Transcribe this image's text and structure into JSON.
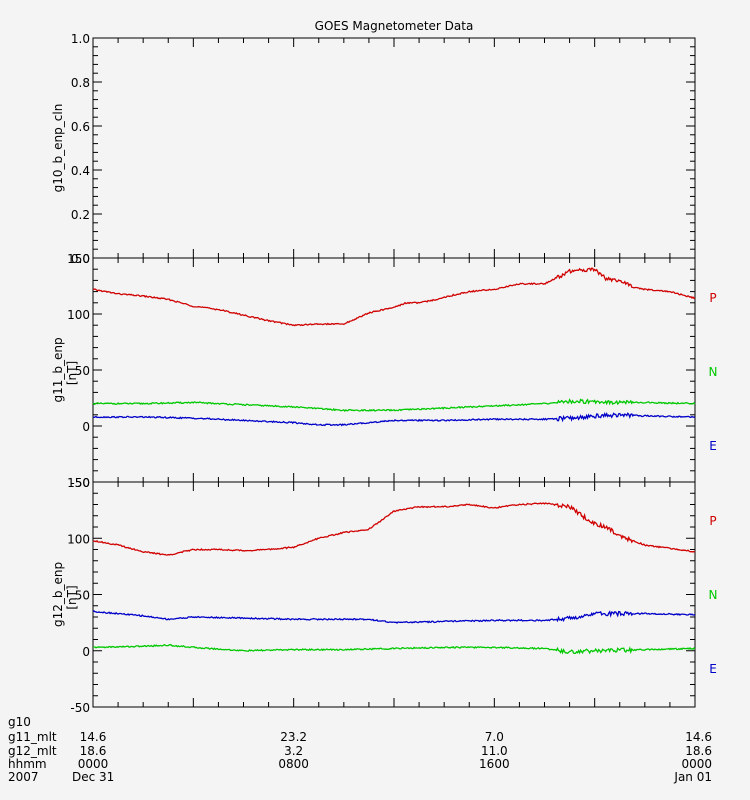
{
  "chart_data": {
    "type": "line",
    "title": "GOES Magnetometer Data",
    "panels": [
      {
        "ylabel": "g10_b_enp_cln",
        "yunits": "",
        "ylim": [
          0.0,
          1.0
        ],
        "yticks": [
          "0.0",
          "0.2",
          "0.4",
          "0.6",
          "0.8",
          "1.0"
        ],
        "series": []
      },
      {
        "ylabel": "g11_b_enp",
        "yunits": "[nT]",
        "ylim": [
          -50,
          150
        ],
        "yticks": [
          "-50",
          "0",
          "50",
          "100",
          "150"
        ],
        "legend": [
          {
            "label": "P",
            "color": "#d00000"
          },
          {
            "label": "N",
            "color": "#00c800"
          },
          {
            "label": "E",
            "color": "#0000c8"
          }
        ],
        "series": [
          {
            "name": "P",
            "color": "#d00000",
            "x": [
              0,
              1,
              2,
              3,
              4,
              5,
              6,
              7,
              8,
              9,
              10,
              11,
              12,
              12.5,
              13,
              13.5,
              14,
              15,
              16,
              17,
              18,
              19,
              20,
              20.5,
              21,
              21.5,
              22,
              23,
              24
            ],
            "y": [
              122,
              118,
              116,
              113,
              107,
              104,
              99,
              94,
              90,
              91,
              91,
              101,
              106,
              110,
              110,
              112,
              115,
              120,
              122,
              127,
              127,
              138,
              140,
              131,
              130,
              124,
              122,
              120,
              114
            ]
          },
          {
            "name": "N",
            "color": "#00c800",
            "x": [
              0,
              2,
              4,
              6,
              8,
              10,
              12,
              14,
              16,
              18,
              19,
              20,
              21,
              22,
              24
            ],
            "y": [
              20,
              20,
              21,
              19,
              17,
              14,
              14,
              16,
              18,
              20,
              22,
              22,
              21,
              21,
              20
            ]
          },
          {
            "name": "E",
            "color": "#0000c8",
            "x": [
              0,
              2,
              4,
              6,
              8,
              9,
              10,
              12,
              14,
              16,
              18,
              19,
              20,
              21,
              22,
              24
            ],
            "y": [
              8,
              8,
              7,
              5,
              3,
              1,
              1,
              5,
              5,
              6,
              6,
              7,
              9,
              10,
              9,
              8
            ]
          }
        ]
      },
      {
        "ylabel": "g12_b_enp",
        "yunits": "[nT]",
        "ylim": [
          -50,
          150
        ],
        "yticks": [
          "-50",
          "0",
          "50",
          "100",
          "150"
        ],
        "legend": [
          {
            "label": "P",
            "color": "#d00000"
          },
          {
            "label": "N",
            "color": "#00c800"
          },
          {
            "label": "E",
            "color": "#0000c8"
          }
        ],
        "series": [
          {
            "name": "P",
            "color": "#d00000",
            "x": [
              0,
              1,
              2,
              3,
              4,
              5,
              6,
              7,
              8,
              9,
              10,
              11,
              12,
              13,
              14,
              15,
              16,
              17,
              18,
              19,
              19.5,
              20,
              20.5,
              21,
              22,
              23,
              24
            ],
            "y": [
              98,
              94,
              88,
              85,
              90,
              90,
              89,
              90,
              92,
              100,
              105,
              108,
              124,
              128,
              128,
              130,
              127,
              130,
              131,
              128,
              120,
              113,
              110,
              102,
              94,
              91,
              88
            ]
          },
          {
            "name": "N",
            "color": "#00c800",
            "x": [
              0,
              2,
              3,
              4,
              6,
              8,
              10,
              12,
              14,
              16,
              18,
              19,
              20,
              22,
              24
            ],
            "y": [
              3,
              4,
              5,
              3,
              0,
              1,
              1,
              2,
              3,
              3,
              2,
              -1,
              0,
              1,
              2
            ]
          },
          {
            "name": "E",
            "color": "#0000c8",
            "x": [
              0,
              2,
              3,
              4,
              6,
              8,
              10,
              11,
              12,
              14,
              16,
              18,
              19,
              20,
              22,
              24
            ],
            "y": [
              35,
              31,
              28,
              30,
              29,
              28,
              28,
              28,
              25,
              26,
              27,
              27,
              29,
              33,
              33,
              32
            ]
          }
        ]
      }
    ],
    "x_axis": {
      "xlim": [
        0,
        24
      ],
      "row_labels": [
        "g10",
        "g11_mlt",
        "g12_mlt",
        "hhmm",
        "2007"
      ],
      "ticks": [
        {
          "x": 0,
          "values": [
            "",
            "14.6",
            "18.6",
            "0000",
            "Dec 31"
          ]
        },
        {
          "x": 8,
          "values": [
            "",
            "23.2",
            "3.2",
            "0800",
            ""
          ]
        },
        {
          "x": 16,
          "values": [
            "",
            "7.0",
            "11.0",
            "1600",
            ""
          ]
        },
        {
          "x": 24,
          "values": [
            "",
            "14.6",
            "18.6",
            "0000",
            "Jan 01"
          ]
        }
      ]
    }
  }
}
